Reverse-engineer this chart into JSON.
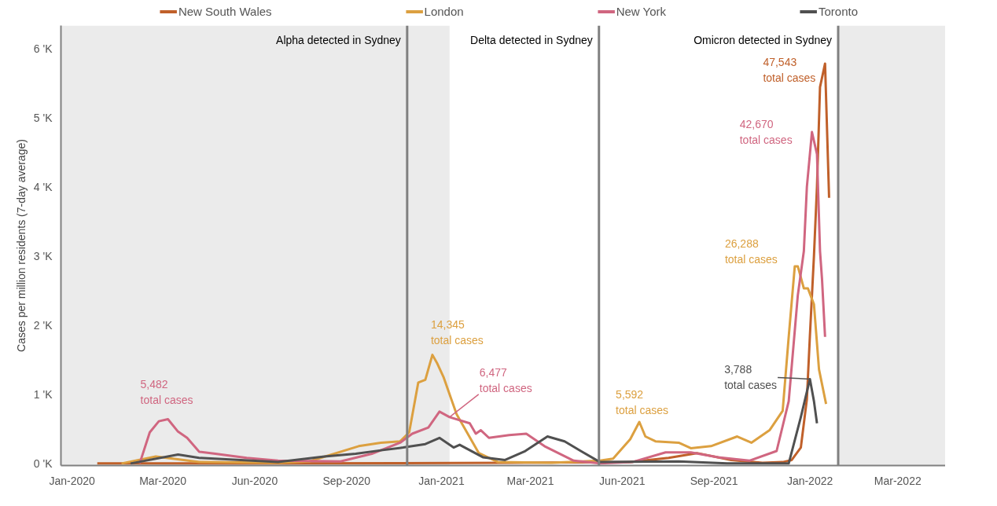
{
  "chart_data": {
    "type": "line",
    "ylabel": "Cases per million residents (7-day average)",
    "xlim": [
      "2019-12-21",
      "2022-05-27"
    ],
    "ylim": [
      -0.03,
      6.33
    ],
    "xticks": [
      {
        "value": "2020-01-01",
        "label": "Jan-2020"
      },
      {
        "value": "2020-03-31",
        "label": "Mar-2020"
      },
      {
        "value": "2020-06-30",
        "label": "Jun-2020"
      },
      {
        "value": "2020-09-29",
        "label": "Sep-2020"
      },
      {
        "value": "2021-01-01",
        "label": "Jan-2021"
      },
      {
        "value": "2021-03-30",
        "label": "Mar-2021"
      },
      {
        "value": "2021-06-29",
        "label": "Jun-2021"
      },
      {
        "value": "2021-09-28",
        "label": "Sep-2021"
      },
      {
        "value": "2022-01-01",
        "label": "Jan-2022"
      },
      {
        "value": "2022-03-29",
        "label": "Mar-2022"
      }
    ],
    "yticks": [
      {
        "value": 0,
        "label": "0 'K"
      },
      {
        "value": 1,
        "label": "1 'K"
      },
      {
        "value": 2,
        "label": "2 'K"
      },
      {
        "value": 3,
        "label": "3 'K"
      },
      {
        "value": 4,
        "label": "4 'K"
      },
      {
        "value": 5,
        "label": "5 'K"
      },
      {
        "value": 6,
        "label": "6 'K"
      }
    ],
    "grid": false,
    "legend": "top",
    "series": [
      {
        "name": "New South Wales",
        "color": "#c0602a",
        "x": [
          "2020-01-26",
          "2020-07-23",
          "2021-03-12",
          "2021-07-07",
          "2021-08-14",
          "2021-09-11",
          "2021-10-15",
          "2021-11-15",
          "2021-12-05",
          "2021-12-14",
          "2021-12-23",
          "2021-12-29",
          "2022-01-01",
          "2022-01-05",
          "2022-01-08",
          "2022-01-11",
          "2022-01-16",
          "2022-01-20"
        ],
        "values": [
          0,
          0,
          0.01,
          0.02,
          0.08,
          0.15,
          0.05,
          0.01,
          0.02,
          0.05,
          0.23,
          0.93,
          1.85,
          3.0,
          4.0,
          5.44,
          5.78,
          3.84
        ]
      },
      {
        "name": "London",
        "color": "#dca040",
        "x": [
          "2020-02-19",
          "2020-03-24",
          "2020-05-06",
          "2020-07-23",
          "2020-08-23",
          "2020-10-11",
          "2020-11-02",
          "2020-11-21",
          "2020-11-30",
          "2020-12-09",
          "2020-12-16",
          "2020-12-23",
          "2020-12-28",
          "2021-01-03",
          "2021-01-16",
          "2021-02-07",
          "2021-02-26",
          "2021-04-20",
          "2021-06-07",
          "2021-06-20",
          "2021-07-07",
          "2021-07-16",
          "2021-07-22",
          "2021-08-01",
          "2021-08-24",
          "2021-09-05",
          "2021-09-25",
          "2021-10-21",
          "2021-11-04",
          "2021-11-22",
          "2021-12-05",
          "2021-12-11",
          "2021-12-17",
          "2021-12-20",
          "2021-12-26",
          "2021-12-30",
          "2022-01-05",
          "2022-01-10",
          "2022-01-17"
        ],
        "values": [
          0,
          0.1,
          0.02,
          0.01,
          0.03,
          0.25,
          0.3,
          0.32,
          0.45,
          1.17,
          1.21,
          1.57,
          1.44,
          1.25,
          0.71,
          0.15,
          0.02,
          0.01,
          0.04,
          0.07,
          0.35,
          0.6,
          0.39,
          0.32,
          0.3,
          0.22,
          0.25,
          0.39,
          0.3,
          0.48,
          0.76,
          1.83,
          2.85,
          2.85,
          2.53,
          2.53,
          2.3,
          1.36,
          0.86
        ]
      },
      {
        "name": "New York",
        "color": "#d06680",
        "x": [
          "2020-03-08",
          "2020-03-18",
          "2020-03-27",
          "2020-04-05",
          "2020-04-15",
          "2020-04-24",
          "2020-05-06",
          "2020-05-22",
          "2020-06-22",
          "2020-07-23",
          "2020-09-23",
          "2020-10-24",
          "2020-11-21",
          "2020-12-03",
          "2020-12-19",
          "2020-12-30",
          "2021-01-09",
          "2021-01-29",
          "2021-02-04",
          "2021-02-09",
          "2021-02-17",
          "2021-03-09",
          "2021-03-26",
          "2021-04-13",
          "2021-05-12",
          "2021-06-07",
          "2021-07-09",
          "2021-08-11",
          "2021-09-05",
          "2021-10-02",
          "2021-11-02",
          "2021-11-29",
          "2021-12-11",
          "2021-12-20",
          "2021-12-26",
          "2021-12-29",
          "2022-01-03",
          "2022-01-08",
          "2022-01-11",
          "2022-01-13",
          "2022-01-16"
        ],
        "values": [
          0,
          0.45,
          0.61,
          0.64,
          0.46,
          0.37,
          0.17,
          0.14,
          0.08,
          0.04,
          0.03,
          0.14,
          0.3,
          0.43,
          0.52,
          0.75,
          0.67,
          0.58,
          0.43,
          0.48,
          0.37,
          0.41,
          0.43,
          0.25,
          0.04,
          0,
          0.02,
          0.16,
          0.16,
          0.09,
          0.04,
          0.18,
          0.9,
          2.43,
          3.07,
          4.0,
          4.79,
          4.47,
          3.07,
          2.66,
          1.83
        ]
      },
      {
        "name": "Toronto",
        "color": "#505050",
        "x": [
          "2020-02-28",
          "2020-04-15",
          "2020-05-06",
          "2020-07-23",
          "2020-09-07",
          "2020-10-08",
          "2020-11-02",
          "2020-11-24",
          "2020-12-16",
          "2020-12-30",
          "2021-01-13",
          "2021-01-19",
          "2021-02-11",
          "2021-03-05",
          "2021-03-25",
          "2021-04-16",
          "2021-05-03",
          "2021-05-19",
          "2021-06-07",
          "2021-08-24",
          "2021-10-11",
          "2021-12-11",
          "2021-12-23",
          "2022-01-01",
          "2022-01-05",
          "2022-01-08"
        ],
        "values": [
          0,
          0.13,
          0.08,
          0.02,
          0.1,
          0.14,
          0.19,
          0.23,
          0.28,
          0.37,
          0.23,
          0.27,
          0.09,
          0.05,
          0.18,
          0.39,
          0.32,
          0.18,
          0.02,
          0.03,
          0,
          0,
          0.67,
          1.22,
          0.9,
          0.58
        ]
      }
    ],
    "annotations": [
      {
        "text": "47,543\ntotal cases",
        "x": "2022-01-16",
        "y": 5.78
      },
      {
        "text": "14,345\ntotal cases",
        "x": "2020-12-23",
        "y": 1.57
      },
      {
        "text": "5,592\ntotal cases",
        "x": "2021-07-16",
        "y": 0.6
      },
      {
        "text": "26,288\ntotal cases",
        "x": "2021-12-17",
        "y": 2.85
      },
      {
        "text": "5,482\ntotal cases",
        "x": "2020-04-05",
        "y": 0.64
      },
      {
        "text": "6,477\ntotal cases",
        "x": "2021-01-09",
        "y": 0.67
      },
      {
        "text": "42,670\ntotal cases",
        "x": "2022-01-03",
        "y": 4.79
      },
      {
        "text": "3,788\ntotal cases",
        "x": "2022-01-01",
        "y": 1.22
      }
    ],
    "ref_lines": [
      {
        "axis": "x",
        "value": "2020-11-28",
        "label": "Alpha detected in Sydney",
        "color": "#808080"
      },
      {
        "axis": "x",
        "value": "2021-06-06",
        "label": "Delta detected in Sydney",
        "color": "#808080"
      },
      {
        "axis": "x",
        "value": "2022-01-29",
        "label": "Omicron detected in Sydney",
        "color": "#808080"
      }
    ],
    "bands": [
      {
        "axis": "x",
        "from": "2019-12-21",
        "to": "2021-01-09",
        "color": "#ebebeb"
      },
      {
        "axis": "x",
        "from": "2022-01-29",
        "to": "2022-05-27",
        "color": "#ebebeb"
      }
    ]
  }
}
